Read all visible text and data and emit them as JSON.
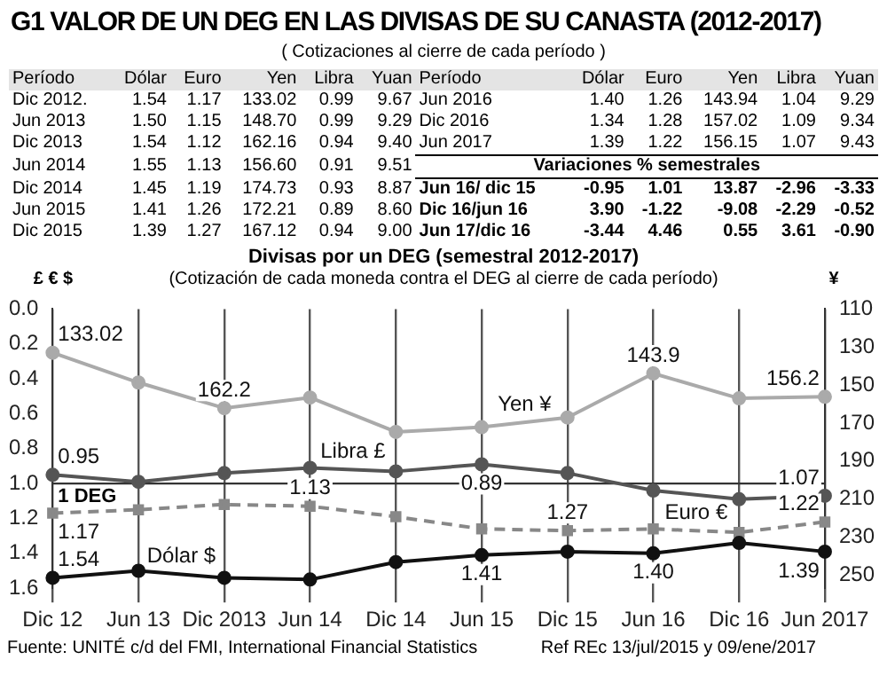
{
  "chart_data": [
    {
      "type": "other",
      "title": "G1 VALOR DE UN DEG EN LAS DIVISAS DE SU CANASTA (2012-2017)",
      "subtitle": "( Cotizaciones al cierre de cada período )",
      "cell_labels": [
        [
          "Período",
          "Dólar",
          "Euro",
          "Yen",
          "Libra",
          "Yuan",
          "Período",
          "Dólar",
          "Euro",
          "Yen",
          "Libra",
          "Yuan"
        ],
        [
          "Dic 2012.",
          "1.54",
          "1.17",
          "133.02",
          "0.99",
          "9.67",
          "Jun 2016",
          "1.40",
          "1.26",
          "143.94",
          "1.04",
          "9.29"
        ],
        [
          "Jun 2013",
          "1.50",
          "1.15",
          "148.70",
          "0.99",
          "9.29",
          "Dic 2016",
          "1.34",
          "1.28",
          "157.02",
          "1.09",
          "9.34"
        ],
        [
          "Dic 2013",
          "1.54",
          "1.12",
          "162.16",
          "0.94",
          "9.40",
          "Jun 2017",
          "1.39",
          "1.22",
          "156.15",
          "1.07",
          "9.43"
        ],
        [
          "Jun 2014",
          "1.55",
          "1.13",
          "156.60",
          "0.91",
          "9.51",
          "Variaciones % semestrales",
          null,
          null,
          null,
          null,
          null
        ],
        [
          "Dic 2014",
          "1.45",
          "1.19",
          "174.73",
          "0.93",
          "8.87",
          "Jun 16/ dic 15",
          "-0.95",
          "1.01",
          "13.87",
          "-2.96",
          "-3.33"
        ],
        [
          "Jun 2015",
          "1.41",
          "1.26",
          "172.21",
          "0.89",
          "8.60",
          "Dic 16/jun 16",
          "3.90",
          "-1.22",
          "-9.08",
          "-2.29",
          "-0.52"
        ],
        [
          "Dic 2015",
          "1.39",
          "1.27",
          "167.12",
          "0.94",
          "9.00",
          "Jun 17/dic 16",
          "-3.44",
          "4.46",
          "0.55",
          "3.61",
          "-0.90"
        ]
      ]
    },
    {
      "type": "line",
      "title": "Divisas por un DEG (semestral 2012-2017)",
      "subtitle": "(Cotización de cada moneda contra el DEG al cierre de cada período)",
      "ylabel": "£ € $",
      "y2label": "¥",
      "categories": [
        "Dic 12",
        "Jun 13",
        "Dic 2013",
        "Jun 14",
        "Dic 14",
        "Jun 15",
        "Dic 15",
        "Jun 16",
        "Dic 16",
        "Jun 2017"
      ],
      "series": [
        {
          "name": "Dólar $",
          "color": "#111111",
          "values": [
            1.54,
            1.5,
            1.54,
            1.55,
            1.45,
            1.41,
            1.39,
            1.4,
            1.34,
            1.39
          ],
          "value_labels": [
            "1.54",
            null,
            null,
            null,
            null,
            "1.41",
            null,
            "1.40",
            null,
            "1.39"
          ]
        },
        {
          "name": "Libra £",
          "color": "#555555",
          "values": [
            0.95,
            0.99,
            0.94,
            0.91,
            0.93,
            0.89,
            0.94,
            1.04,
            1.09,
            1.07
          ],
          "value_labels": [
            "0.95",
            null,
            null,
            null,
            null,
            "0.89",
            null,
            null,
            null,
            "1.07"
          ]
        },
        {
          "name": "Yen ¥",
          "color": "#aaaaaa",
          "axis": "y2",
          "values": [
            133.02,
            148.7,
            162.2,
            156.6,
            174.7,
            172.2,
            167.1,
            143.9,
            157.0,
            156.2
          ],
          "value_labels": [
            "133.02",
            null,
            "162.2",
            null,
            null,
            null,
            null,
            "143.9",
            null,
            "156.2"
          ]
        },
        {
          "name": "Euro €",
          "color": "#888888",
          "marker": "square",
          "line_style": "dashed",
          "values": [
            1.17,
            1.15,
            1.12,
            1.13,
            1.19,
            1.26,
            1.27,
            1.26,
            1.28,
            1.22
          ],
          "value_labels": [
            "1.17",
            null,
            null,
            "1.13",
            null,
            null,
            "1.27",
            null,
            null,
            "1.22"
          ]
        }
      ],
      "ylim": [
        1.6,
        0
      ],
      "yticks": [
        {
          "value": 0,
          "label": "0.0"
        },
        {
          "value": 0.2,
          "label": "0.2"
        },
        {
          "value": 0.4,
          "label": "0.4"
        },
        {
          "value": 0.6,
          "label": "0.6"
        },
        {
          "value": 0.8,
          "label": "0.8"
        },
        {
          "value": 1,
          "label": "1.0"
        },
        {
          "value": 1.2,
          "label": "1.2"
        },
        {
          "value": 1.4,
          "label": "1.4"
        },
        {
          "value": 1.6,
          "label": "1.6"
        }
      ],
      "y2lim": [
        257,
        110
      ],
      "y2ticks": [
        110,
        130,
        150,
        170,
        190,
        210,
        230,
        250
      ],
      "grid": "x",
      "marker": "circle",
      "legend": false,
      "ref_lines": [
        {
          "axis": "y",
          "value": 1,
          "label": "1 DEG"
        }
      ],
      "annotations": [
        "Fuente: UNITÉ c/d del FMI, International Financial Statistics",
        "Ref REc 13/jul/2015 y 09/ene/2017"
      ]
    }
  ]
}
